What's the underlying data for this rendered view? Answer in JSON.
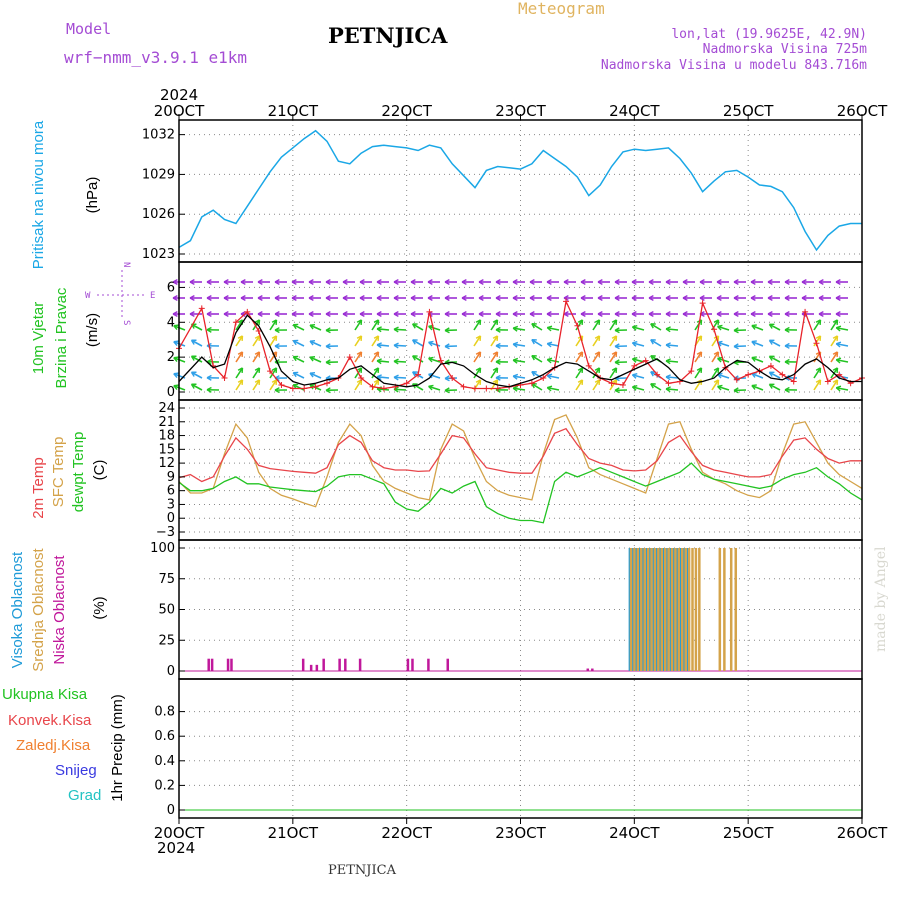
{
  "header": {
    "model_label": "Model",
    "model_name": "wrf−nmm_v3.9.1  e1km",
    "station": "PETNJICA",
    "title": "Meteogram",
    "lonlat": "lon,lat (19.9625E, 42.9N)",
    "elevation": "Nadmorska Visina 725m",
    "model_elevation": "Nadmorska Visina u modelu 843.716m",
    "year_top": "2024",
    "year_bottom": "2024",
    "footer_station": "PETNJICA",
    "credit": "made by Angel"
  },
  "colors": {
    "pressure": "#1aa7e6",
    "wind_speed_line": "#000000",
    "gust": "#e8232a",
    "temp2m": "#e8454a",
    "sfc": "#d4a34a",
    "dewpt": "#22c322",
    "high_cloud": "#1f9bd8",
    "mid_cloud": "#d4a34a",
    "low_cloud": "#c0189b",
    "header_purple": "#a44cd4",
    "meteogram_title": "#e0b460"
  },
  "x_axis": {
    "ticks": [
      "20OCT",
      "21OCT",
      "22OCT",
      "23OCT",
      "24OCT",
      "25OCT",
      "26OCT"
    ],
    "range_days": [
      0,
      6
    ]
  },
  "panels": {
    "pressure": {
      "ylabel_1": "Pritisak na nivou mora",
      "ylabel_2": "(hPa)",
      "yticks": [
        "1032",
        "1029",
        "1026",
        "1023"
      ]
    },
    "wind": {
      "ylabel_1": "10m Vjetar",
      "ylabel_2": "Brzina i Pravac",
      "ylabel_3": "(m/s)",
      "compass_n": "N",
      "compass_s": "S",
      "compass_w": "W",
      "compass_e": "E",
      "yticks": [
        "6",
        "4",
        "2",
        "0"
      ]
    },
    "temp": {
      "ylabel_1": "2m Temp",
      "ylabel_2": "SFC Temp",
      "ylabel_3": "dewpt Temp",
      "ylabel_4": "(C)",
      "yticks": [
        "24",
        "21",
        "18",
        "15",
        "12",
        "9",
        "6",
        "3",
        "0",
        "−3"
      ]
    },
    "cloud": {
      "ylabel_1": "Visoka Oblacnost",
      "ylabel_2": "Srednja Oblacnost",
      "ylabel_3": "Niska Oblacnost",
      "ylabel_4": "(%)",
      "yticks": [
        "100",
        "75",
        "50",
        "25",
        "0"
      ]
    },
    "precip": {
      "legend_total": "Ukupna Kisa",
      "legend_conv": "Konvek.Kisa",
      "legend_frz": "Zaledj.Kisa",
      "legend_snow": "Snijeg",
      "legend_grad": "Grad",
      "ylabel": "1hr Precip (mm)",
      "yticks": [
        "0.8",
        "0.6",
        "0.4",
        "0.2",
        "0"
      ]
    }
  },
  "chart_data": [
    {
      "type": "line",
      "name": "pressure",
      "ylim": [
        1023,
        1032.5
      ],
      "x": [
        0,
        0.1,
        0.2,
        0.3,
        0.4,
        0.5,
        0.6,
        0.7,
        0.8,
        0.9,
        1.0,
        1.1,
        1.2,
        1.3,
        1.4,
        1.5,
        1.6,
        1.7,
        1.8,
        1.9,
        2.0,
        2.1,
        2.2,
        2.3,
        2.4,
        2.5,
        2.6,
        2.7,
        2.8,
        2.9,
        3.0,
        3.1,
        3.2,
        3.3,
        3.4,
        3.5,
        3.6,
        3.7,
        3.8,
        3.9,
        4.0,
        4.1,
        4.2,
        4.3,
        4.4,
        4.5,
        4.6,
        4.7,
        4.8,
        4.9,
        5.0,
        5.1,
        5.2,
        5.3,
        5.4,
        5.5,
        5.6,
        5.7,
        5.8,
        5.9,
        6.0
      ],
      "values": [
        1023.5,
        1024.0,
        1025.8,
        1026.3,
        1025.6,
        1025.3,
        1026.6,
        1027.9,
        1029.2,
        1030.3,
        1031.0,
        1031.7,
        1032.3,
        1031.5,
        1030.0,
        1029.8,
        1030.6,
        1031.1,
        1031.2,
        1031.1,
        1031.0,
        1030.8,
        1031.2,
        1031.0,
        1029.8,
        1028.9,
        1028.0,
        1029.3,
        1029.6,
        1029.5,
        1029.4,
        1029.8,
        1030.8,
        1030.2,
        1029.6,
        1028.8,
        1027.4,
        1028.2,
        1029.6,
        1030.7,
        1030.9,
        1030.8,
        1030.9,
        1031.0,
        1030.2,
        1029.1,
        1027.7,
        1028.5,
        1029.2,
        1029.3,
        1028.8,
        1028.2,
        1028.1,
        1027.7,
        1026.5,
        1024.7,
        1023.3,
        1024.4,
        1025.1,
        1025.3,
        1025.3
      ]
    },
    {
      "type": "line",
      "name": "wind",
      "ylim": [
        0,
        7
      ],
      "x": [
        0,
        0.2,
        0.3,
        0.4,
        0.5,
        0.6,
        0.7,
        0.8,
        0.9,
        1.0,
        1.1,
        1.2,
        1.3,
        1.4,
        1.5,
        1.6,
        1.7,
        1.8,
        1.9,
        2.0,
        2.1,
        2.2,
        2.3,
        2.4,
        2.5,
        2.6,
        2.7,
        2.8,
        2.9,
        3.0,
        3.1,
        3.2,
        3.3,
        3.4,
        3.5,
        3.6,
        3.7,
        3.8,
        3.9,
        4.0,
        4.1,
        4.2,
        4.3,
        4.4,
        4.5,
        4.6,
        4.7,
        4.8,
        4.9,
        5.0,
        5.1,
        5.2,
        5.3,
        5.4,
        5.5,
        5.6,
        5.7,
        5.8,
        5.9,
        6.0
      ],
      "series": [
        {
          "values": [
            0.6,
            2.0,
            1.4,
            1.6,
            3.4,
            4.4,
            3.8,
            2.6,
            1.2,
            0.6,
            0.4,
            0.5,
            0.7,
            0.8,
            1.3,
            1.5,
            1.0,
            0.5,
            0.4,
            0.3,
            0.4,
            0.8,
            1.6,
            1.7,
            1.5,
            1.0,
            0.6,
            0.4,
            0.3,
            0.5,
            0.7,
            1.0,
            1.4,
            1.7,
            1.6,
            1.2,
            0.8,
            0.7,
            1.0,
            1.3,
            1.6,
            1.9,
            1.4,
            0.7,
            0.5,
            0.6,
            0.8,
            1.4,
            1.8,
            1.7,
            1.2,
            0.8,
            0.7,
            1.0,
            1.6,
            1.9,
            1.4,
            0.8,
            0.6,
            0.6
          ]
        },
        {
          "values": [
            2.5,
            4.8,
            1.5,
            0.8,
            4.0,
            4.6,
            3.5,
            1.2,
            0.4,
            0.2,
            0.2,
            0.3,
            0.5,
            0.8,
            2.0,
            0.8,
            0.3,
            0.2,
            0.3,
            0.5,
            1.0,
            4.6,
            1.8,
            0.8,
            0.3,
            0.2,
            0.2,
            0.2,
            0.3,
            0.4,
            0.5,
            0.8,
            1.4,
            5.2,
            3.8,
            1.5,
            0.8,
            0.5,
            0.4,
            1.5,
            1.8,
            1.0,
            0.5,
            0.6,
            1.2,
            5.1,
            3.6,
            1.4,
            0.7,
            1.0,
            1.2,
            1.5,
            1.0,
            0.6,
            4.6,
            2.8,
            0.6,
            1.0,
            0.5,
            0.8
          ]
        }
      ]
    },
    {
      "type": "line",
      "name": "temperature",
      "ylim": [
        -3,
        24
      ],
      "x": [
        0,
        0.1,
        0.2,
        0.3,
        0.4,
        0.5,
        0.6,
        0.7,
        0.8,
        0.9,
        1.0,
        1.1,
        1.2,
        1.3,
        1.4,
        1.5,
        1.6,
        1.7,
        1.8,
        1.9,
        2.0,
        2.1,
        2.2,
        2.3,
        2.4,
        2.5,
        2.6,
        2.7,
        2.8,
        2.9,
        3.0,
        3.1,
        3.2,
        3.3,
        3.4,
        3.5,
        3.6,
        3.7,
        3.8,
        3.9,
        4.0,
        4.1,
        4.2,
        4.3,
        4.4,
        4.5,
        4.6,
        4.7,
        4.8,
        4.9,
        5.0,
        5.1,
        5.2,
        5.3,
        5.4,
        5.5,
        5.6,
        5.7,
        5.8,
        5.9,
        6.0
      ],
      "series": [
        {
          "values": [
            8.8,
            9.5,
            8.0,
            9.0,
            13.5,
            17.5,
            15.0,
            11.5,
            10.8,
            10.5,
            10.2,
            10.0,
            9.8,
            11.0,
            16.0,
            18.0,
            16.5,
            12.5,
            11.0,
            10.5,
            10.5,
            10.2,
            10.3,
            14.0,
            18.0,
            17.5,
            14.0,
            11.0,
            10.5,
            10.0,
            9.8,
            9.8,
            13.5,
            18.5,
            19.5,
            16.0,
            13.0,
            12.0,
            11.5,
            10.5,
            10.3,
            10.5,
            12.5,
            16.5,
            18.0,
            14.5,
            11.5,
            10.5,
            10.0,
            9.5,
            9.0,
            9.0,
            9.5,
            13.5,
            17.0,
            17.5,
            15.0,
            13.0,
            12.0,
            12.5,
            12.5
          ]
        },
        {
          "values": [
            8.0,
            5.5,
            5.5,
            6.5,
            14.0,
            20.5,
            17.5,
            10.0,
            6.5,
            5.0,
            4.2,
            3.3,
            2.5,
            9.0,
            16.5,
            20.5,
            18.0,
            11.5,
            8.0,
            6.5,
            5.5,
            4.5,
            4.0,
            15.0,
            20.5,
            19.0,
            13.0,
            8.0,
            6.0,
            5.0,
            4.5,
            4.0,
            14.0,
            21.5,
            22.5,
            17.5,
            11.0,
            9.5,
            8.5,
            7.5,
            6.5,
            5.5,
            13.0,
            20.5,
            21.0,
            15.0,
            10.0,
            8.5,
            7.5,
            6.0,
            5.0,
            4.5,
            6.0,
            14.0,
            20.5,
            21.0,
            16.5,
            12.0,
            9.5,
            8.0,
            6.5
          ]
        },
        {
          "values": [
            7.8,
            6.0,
            6.0,
            6.5,
            8.0,
            9.0,
            7.5,
            7.5,
            6.8,
            6.5,
            6.2,
            6.0,
            5.8,
            7.0,
            9.0,
            9.5,
            9.5,
            8.5,
            7.5,
            3.5,
            2.0,
            1.5,
            3.5,
            6.5,
            5.5,
            7.0,
            8.0,
            2.5,
            1.0,
            0.0,
            -0.5,
            -0.5,
            -1.0,
            8.0,
            10.0,
            9.0,
            10.0,
            11.0,
            10.0,
            9.0,
            8.0,
            7.0,
            8.0,
            9.0,
            10.0,
            12.0,
            9.5,
            8.5,
            8.0,
            7.5,
            7.0,
            6.5,
            7.0,
            8.5,
            9.5,
            10.0,
            11.0,
            9.0,
            7.5,
            5.5,
            4.0
          ]
        }
      ]
    },
    {
      "type": "bar",
      "name": "cloud",
      "ylim": [
        0,
        100
      ],
      "series": [
        {
          "x": [
            3.95,
            3.98,
            4.01,
            4.04,
            4.07,
            4.1,
            4.13,
            4.16,
            4.19,
            4.22,
            4.25,
            4.28,
            4.31,
            4.34,
            4.37,
            4.4,
            4.43,
            4.46
          ],
          "values": [
            100,
            100,
            100,
            100,
            100,
            100,
            100,
            100,
            100,
            100,
            100,
            100,
            100,
            100,
            100,
            100,
            100,
            100
          ]
        },
        {
          "x": [
            3.96,
            3.99,
            4.02,
            4.05,
            4.08,
            4.11,
            4.14,
            4.17,
            4.2,
            4.23,
            4.26,
            4.29,
            4.32,
            4.35,
            4.38,
            4.41,
            4.44,
            4.47,
            4.5,
            4.53,
            4.56,
            4.74,
            4.78,
            4.84,
            4.88
          ],
          "values": [
            100,
            100,
            100,
            100,
            100,
            100,
            100,
            100,
            100,
            100,
            100,
            100,
            100,
            100,
            100,
            100,
            100,
            100,
            100,
            100,
            100,
            100,
            100,
            100,
            100
          ]
        },
        {
          "x": [
            0.25,
            0.28,
            0.42,
            0.45,
            1.08,
            1.15,
            1.2,
            1.26,
            1.4,
            1.45,
            1.58,
            2.0,
            2.04,
            2.18,
            2.35,
            3.58,
            3.62
          ],
          "values": [
            10,
            10,
            10,
            10,
            10,
            5,
            5,
            10,
            10,
            10,
            10,
            10,
            10,
            10,
            10,
            2,
            2
          ]
        }
      ]
    },
    {
      "type": "bar",
      "name": "precip",
      "ylim": [
        0,
        1.0
      ],
      "x": [
        0,
        6
      ],
      "values": [
        0,
        0
      ]
    }
  ]
}
